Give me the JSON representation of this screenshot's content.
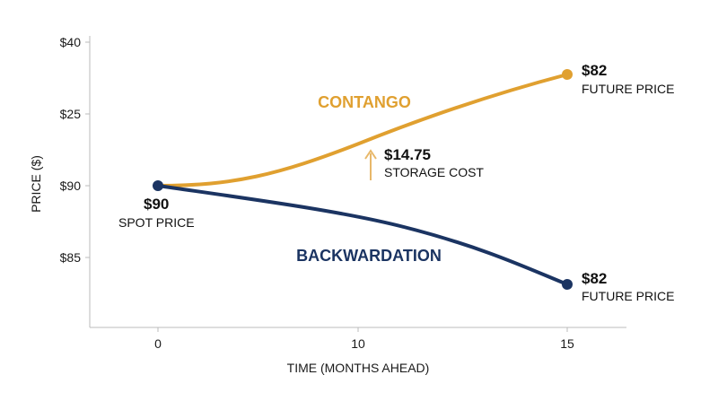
{
  "chart_data": {
    "type": "line",
    "title": "",
    "xlabel": "TIME (MONTHS AHEAD)",
    "ylabel": "PRICE ($)",
    "x_ticks": [
      "0",
      "10",
      "15"
    ],
    "y_ticks": [
      "$40",
      "$25",
      "$90",
      "$85"
    ],
    "grid": false,
    "series": [
      {
        "name": "CONTANGO",
        "color": "#E0A030",
        "x": [
          0,
          15
        ],
        "y_labels": [
          "$90",
          "$82"
        ]
      },
      {
        "name": "BACKWARDATION",
        "color": "#1B3462",
        "x": [
          0,
          15
        ],
        "y_labels": [
          "$90",
          "$82"
        ]
      }
    ],
    "annotations": {
      "spot": {
        "value": "$90",
        "label": "SPOT PRICE"
      },
      "contango_end": {
        "value": "$82",
        "label": "FUTURE PRICE"
      },
      "backwardation_end": {
        "value": "$82",
        "label": "FUTURE PRICE"
      },
      "storage": {
        "value": "$14.75",
        "label": "STORAGE COST"
      }
    }
  }
}
